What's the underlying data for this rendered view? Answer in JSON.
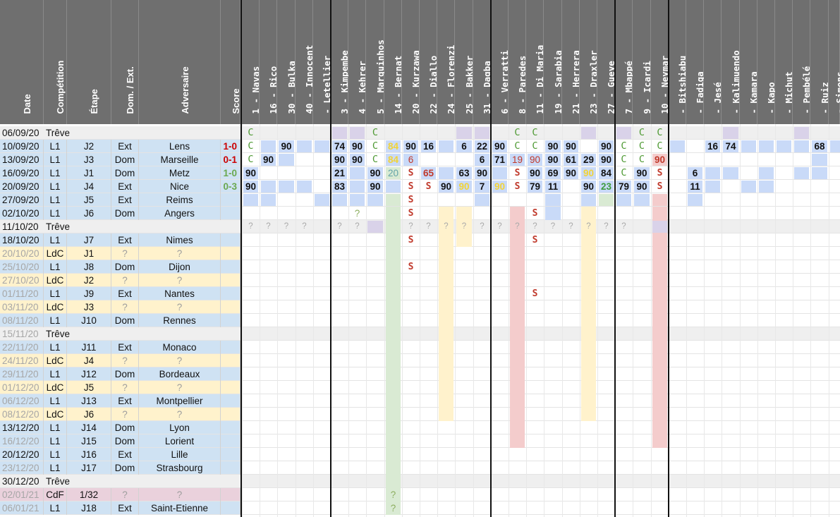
{
  "left_headers": [
    "Date",
    "Compétition",
    "Étape",
    "Dom. / Ext.",
    "Adversaire",
    "Score"
  ],
  "players": [
    "1 - Navas",
    "16 - Rico",
    "30 - Bulka",
    "40 - Innocent",
    "- Letellier",
    "3 - Kimpembe",
    "4 - Kehrer",
    "5 - Marquinhos",
    "14 - Bernat",
    "20 - Kurzawa",
    "22 - Diallo",
    "24 - Florenzi",
    "25 - Bakker",
    "31 - Dagba",
    "6 - Verratti",
    "8 - Paredes",
    "11 - Di Maria",
    "19 - Sarabia",
    "21 - Herrera",
    "23 - Draxler",
    "27 - Gueye",
    "7 - Mbappé",
    "9 - Icardi",
    "10 - Neymar",
    "- Bitshiabu",
    "- Fadiga",
    "- Jesé",
    "- Kalimuendo",
    "- Kamara",
    "- Kapo",
    "- Michut",
    "- Pembélé",
    "- Ruiz",
    "- Simons"
  ],
  "colors": {
    "header_bg": "#6f6f6f",
    "treve_bg": "#efefef",
    "l1_bg": "#cfe2f3",
    "ldc_bg": "#fff2cc",
    "cdf_bg": "#ead1dc",
    "blue_mark": "#c9daf8",
    "yellow_mark": "#fff2cc",
    "pink_mark": "#f4cccc",
    "purple_mark": "#d9d2e9",
    "green_mark": "#d9ead3",
    "score_win": "#6aa84f",
    "score_loss": "#cc0000"
  },
  "rows": [
    {
      "date": "06/09/20",
      "comp": "Trêve",
      "etape": "",
      "lieu": "",
      "adv": "",
      "score": "",
      "kind": "treve",
      "played": true,
      "marks": {
        "0": "g:C",
        "7": "g:C",
        "15": "g:C",
        "16": "g:C",
        "22": "g:C",
        "23": "g:C"
      }
    },
    {
      "date": "10/09/20",
      "comp": "L1",
      "etape": "J2",
      "lieu": "Ext",
      "adv": "Lens",
      "score": "1-0",
      "sc": "r",
      "kind": "L1",
      "played": true,
      "marks": {
        "0": "g:C",
        "2": "b:90",
        "5": "b:74",
        "6": "b:90",
        "7": "g:C",
        "8": "y:84",
        "9": "b:90",
        "10": "b:16",
        "12": "b:6",
        "13": "b:22",
        "14": "b:90",
        "15": "g:C",
        "16": "g:C",
        "17": "b:90",
        "18": "b:90",
        "20": "b:90",
        "21": "g:C",
        "22": "g:C",
        "23": "g:C",
        "26": "b:16",
        "27": "b:74",
        "32": "b:68"
      }
    },
    {
      "date": "13/09/20",
      "comp": "L1",
      "etape": "J3",
      "lieu": "Dom",
      "adv": "Marseille",
      "score": "0-1",
      "sc": "r",
      "kind": "L1",
      "played": true,
      "marks": {
        "0": "g:C",
        "1": "b:90",
        "5": "b:90",
        "6": "b:90",
        "7": "g:C",
        "8": "y:84",
        "9": "rn:6",
        "13": "b:6",
        "14": "b:71",
        "15": "rn:19",
        "16": "rn:90",
        "17": "b:90",
        "18": "b:61",
        "19": "b:29",
        "20": "b:90",
        "21": "g:C",
        "22": "g:C",
        "23": "p:90"
      }
    },
    {
      "date": "16/09/20",
      "comp": "L1",
      "etape": "J1",
      "lieu": "Metz",
      "adv": "Metz",
      "score": "1-0",
      "sc": "g",
      "kind": "L1",
      "played": true,
      "lieu_override": "Dom",
      "marks": {
        "0": "b:90",
        "5": "b:21",
        "7": "b:90",
        "8": "t:20",
        "9": "s:S",
        "10": "r:65",
        "12": "b:63",
        "13": "b:90",
        "15": "s:S",
        "16": "b:90",
        "17": "b:69",
        "18": "b:90",
        "19": "y:90",
        "20": "b:84",
        "21": "g:C",
        "22": "b:90",
        "23": "s:S",
        "25": "b:6"
      }
    },
    {
      "date": "20/09/20",
      "comp": "L1",
      "etape": "J4",
      "lieu": "Ext",
      "adv": "Nice",
      "score": "0-3",
      "sc": "g",
      "kind": "L1",
      "played": true,
      "marks": {
        "0": "b:90",
        "5": "b:83",
        "7": "b:90",
        "9": "s:S",
        "10": "s:S",
        "11": "b:90",
        "12": "y:90",
        "13": "b:7",
        "14": "y:90",
        "15": "s:S",
        "16": "b:79",
        "17": "b:11",
        "19": "b:90",
        "20": "gg:23",
        "21": "b:79",
        "22": "b:90",
        "23": "s:S",
        "25": "b:11"
      }
    },
    {
      "date": "27/09/20",
      "comp": "L1",
      "etape": "J5",
      "lieu": "Ext",
      "adv": "Reims",
      "score": "",
      "kind": "L1",
      "played": true,
      "marks": {
        "9": "s:S"
      }
    },
    {
      "date": "02/10/20",
      "comp": "L1",
      "etape": "J6",
      "lieu": "Dom",
      "adv": "Angers",
      "score": "",
      "kind": "L1",
      "played": true,
      "marks": {
        "6": "q:?",
        "9": "s:S",
        "16": "s:S"
      }
    },
    {
      "date": "11/10/20",
      "comp": "Trêve",
      "etape": "",
      "lieu": "",
      "adv": "",
      "score": "",
      "kind": "treve",
      "played": true,
      "marks": {
        "0": "qg:?",
        "1": "qg:?",
        "2": "qg:?",
        "3": "qg:?",
        "5": "qg:?",
        "6": "qg:?",
        "9": "qg:?",
        "10": "qg:?",
        "11": "qg:?",
        "12": "qg:?",
        "13": "qg:?",
        "14": "qg:?",
        "15": "qg:?",
        "16": "qg:?",
        "17": "qg:?",
        "18": "qg:?",
        "19": "qg:?",
        "20": "qg:?",
        "21": "qg:?"
      }
    },
    {
      "date": "18/10/20",
      "comp": "L1",
      "etape": "J7",
      "lieu": "Ext",
      "adv": "Nimes",
      "score": "",
      "kind": "L1",
      "played": true,
      "marks": {
        "9": "s:S",
        "16": "s:S"
      }
    },
    {
      "date": "20/10/20",
      "comp": "LdC",
      "etape": "J1",
      "lieu": "?",
      "adv": "?",
      "score": "",
      "kind": "LdC",
      "played": false,
      "marks": {}
    },
    {
      "date": "25/10/20",
      "comp": "L1",
      "etape": "J8",
      "lieu": "Dom",
      "adv": "Dijon",
      "score": "",
      "kind": "L1",
      "played": false,
      "marks": {
        "9": "s:S"
      }
    },
    {
      "date": "27/10/20",
      "comp": "LdC",
      "etape": "J2",
      "lieu": "?",
      "adv": "?",
      "score": "",
      "kind": "LdC",
      "played": false,
      "marks": {}
    },
    {
      "date": "01/11/20",
      "comp": "L1",
      "etape": "J9",
      "lieu": "Ext",
      "adv": "Nantes",
      "score": "",
      "kind": "L1",
      "played": false,
      "marks": {
        "16": "s:S"
      }
    },
    {
      "date": "03/11/20",
      "comp": "LdC",
      "etape": "J3",
      "lieu": "?",
      "adv": "?",
      "score": "",
      "kind": "LdC",
      "played": false,
      "marks": {}
    },
    {
      "date": "08/11/20",
      "comp": "L1",
      "etape": "J10",
      "lieu": "Dom",
      "adv": "Rennes",
      "score": "",
      "kind": "L1",
      "played": false,
      "marks": {}
    },
    {
      "date": "15/11/20",
      "comp": "Trêve",
      "etape": "",
      "lieu": "",
      "adv": "",
      "score": "",
      "kind": "treve",
      "played": false,
      "marks": {}
    },
    {
      "date": "22/11/20",
      "comp": "L1",
      "etape": "J11",
      "lieu": "Ext",
      "adv": "Monaco",
      "score": "",
      "kind": "L1",
      "played": false,
      "marks": {}
    },
    {
      "date": "24/11/20",
      "comp": "LdC",
      "etape": "J4",
      "lieu": "?",
      "adv": "?",
      "score": "",
      "kind": "LdC",
      "played": false,
      "marks": {}
    },
    {
      "date": "29/11/20",
      "comp": "L1",
      "etape": "J12",
      "lieu": "Dom",
      "adv": "Bordeaux",
      "score": "",
      "kind": "L1",
      "played": false,
      "marks": {}
    },
    {
      "date": "01/12/20",
      "comp": "LdC",
      "etape": "J5",
      "lieu": "?",
      "adv": "?",
      "score": "",
      "kind": "LdC",
      "played": false,
      "marks": {}
    },
    {
      "date": "06/12/20",
      "comp": "L1",
      "etape": "J13",
      "lieu": "Ext",
      "adv": "Montpellier",
      "score": "",
      "kind": "L1",
      "played": false,
      "marks": {}
    },
    {
      "date": "08/12/20",
      "comp": "LdC",
      "etape": "J6",
      "lieu": "?",
      "adv": "?",
      "score": "",
      "kind": "LdC",
      "played": false,
      "marks": {}
    },
    {
      "date": "13/12/20",
      "comp": "L1",
      "etape": "J14",
      "lieu": "Dom",
      "adv": "Lyon",
      "score": "",
      "kind": "L1",
      "played": true,
      "marks": {}
    },
    {
      "date": "16/12/20",
      "comp": "L1",
      "etape": "J15",
      "lieu": "Dom",
      "adv": "Lorient",
      "score": "",
      "kind": "L1",
      "played": false,
      "marks": {}
    },
    {
      "date": "20/12/20",
      "comp": "L1",
      "etape": "J16",
      "lieu": "Ext",
      "adv": "Lille",
      "score": "",
      "kind": "L1",
      "played": true,
      "marks": {}
    },
    {
      "date": "23/12/20",
      "comp": "L1",
      "etape": "J17",
      "lieu": "Dom",
      "adv": "Strasbourg",
      "score": "",
      "kind": "L1",
      "played": false,
      "marks": {}
    },
    {
      "date": "30/12/20",
      "comp": "Trêve",
      "etape": "",
      "lieu": "",
      "adv": "",
      "score": "",
      "kind": "treve",
      "played": true,
      "marks": {}
    },
    {
      "date": "02/01/21",
      "comp": "CdF",
      "etape": "1/32",
      "lieu": "?",
      "adv": "?",
      "score": "",
      "kind": "CdF",
      "played": false,
      "marks": {
        "8": "q:?"
      }
    },
    {
      "date": "06/01/21",
      "comp": "L1",
      "etape": "J18",
      "lieu": "Ext",
      "adv": "Saint-Etienne",
      "score": "",
      "kind": "L1",
      "played": false,
      "marks": {
        "8": "q:?"
      }
    }
  ],
  "col_bands": {
    "8": {
      "color": "green_mark",
      "from": 6,
      "to": 28
    },
    "11": {
      "color": "yellow_mark",
      "from": 6,
      "to": 21
    },
    "12": {
      "color": "yellow_mark",
      "from": 6,
      "to": 8
    },
    "15": {
      "color": "pink_mark",
      "from": 6,
      "to": 23
    },
    "17": {
      "color": "blue_mark",
      "from": 6,
      "to": 6
    },
    "19": {
      "color": "yellow_mark",
      "from": 6,
      "to": 21
    },
    "23": {
      "color": "pink_mark",
      "from": 6,
      "to": 23
    }
  }
}
